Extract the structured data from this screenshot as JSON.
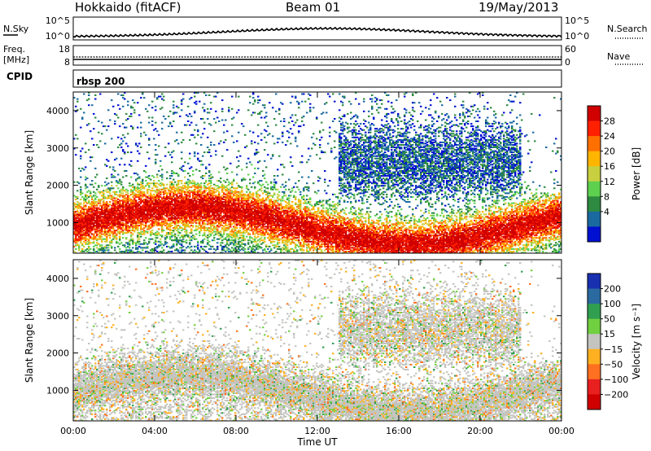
{
  "header": {
    "station": "Hokkaido (fitACF)",
    "beam": "Beam 01",
    "date": "19/May/2013"
  },
  "noise_panel": {
    "left_label": "N.Sky",
    "right_label": "N.Search",
    "ticks": [
      "10^5",
      "10^0"
    ]
  },
  "freq_panel": {
    "left_label_line1": "Freq.",
    "left_label_line2": "[MHz]",
    "right_label": "Nave",
    "left_ticks": [
      "18",
      "8"
    ],
    "right_ticks": [
      "60",
      "0"
    ]
  },
  "cpid_panel": {
    "label": "CPID",
    "program": "rbsp 200"
  },
  "chart_data": [
    {
      "type": "heatmap",
      "title": "",
      "quantity": "Power",
      "ylabel": "Slant Range [km]",
      "xlabel": "",
      "ylim": [
        180,
        4500
      ],
      "xlim_hours": [
        0,
        24
      ],
      "yticks": [
        "1000",
        "2000",
        "3000",
        "4000"
      ],
      "colorbar": {
        "label": "Power [dB]",
        "ticks": [
          "28",
          "24",
          "20",
          "16",
          "12",
          "8",
          "4"
        ],
        "colors": [
          "#d00000",
          "#ff2000",
          "#ff7000",
          "#ffb400",
          "#c8d040",
          "#5ed050",
          "#2e8a40",
          "#1a6aa0",
          "#0010d0"
        ]
      }
    },
    {
      "type": "heatmap",
      "title": "",
      "quantity": "Velocity",
      "ylabel": "Slant Range [km]",
      "xlabel": "Time UT",
      "ylim": [
        180,
        4500
      ],
      "xlim_hours": [
        0,
        24
      ],
      "yticks": [
        "1000",
        "2000",
        "3000",
        "4000"
      ],
      "xticks": [
        "00:00",
        "04:00",
        "08:00",
        "12:00",
        "16:00",
        "20:00",
        "00:00"
      ],
      "colorbar": {
        "label": "Velocity [m s⁻¹]",
        "ticks": [
          "200",
          "100",
          "50",
          "15",
          "−15",
          "−50",
          "−100",
          "−200"
        ],
        "colors": [
          "#1830b0",
          "#2a6aa0",
          "#30a050",
          "#70d040",
          "#c4c4c0",
          "#ffb020",
          "#ff7020",
          "#e82020",
          "#d00000"
        ]
      }
    }
  ]
}
